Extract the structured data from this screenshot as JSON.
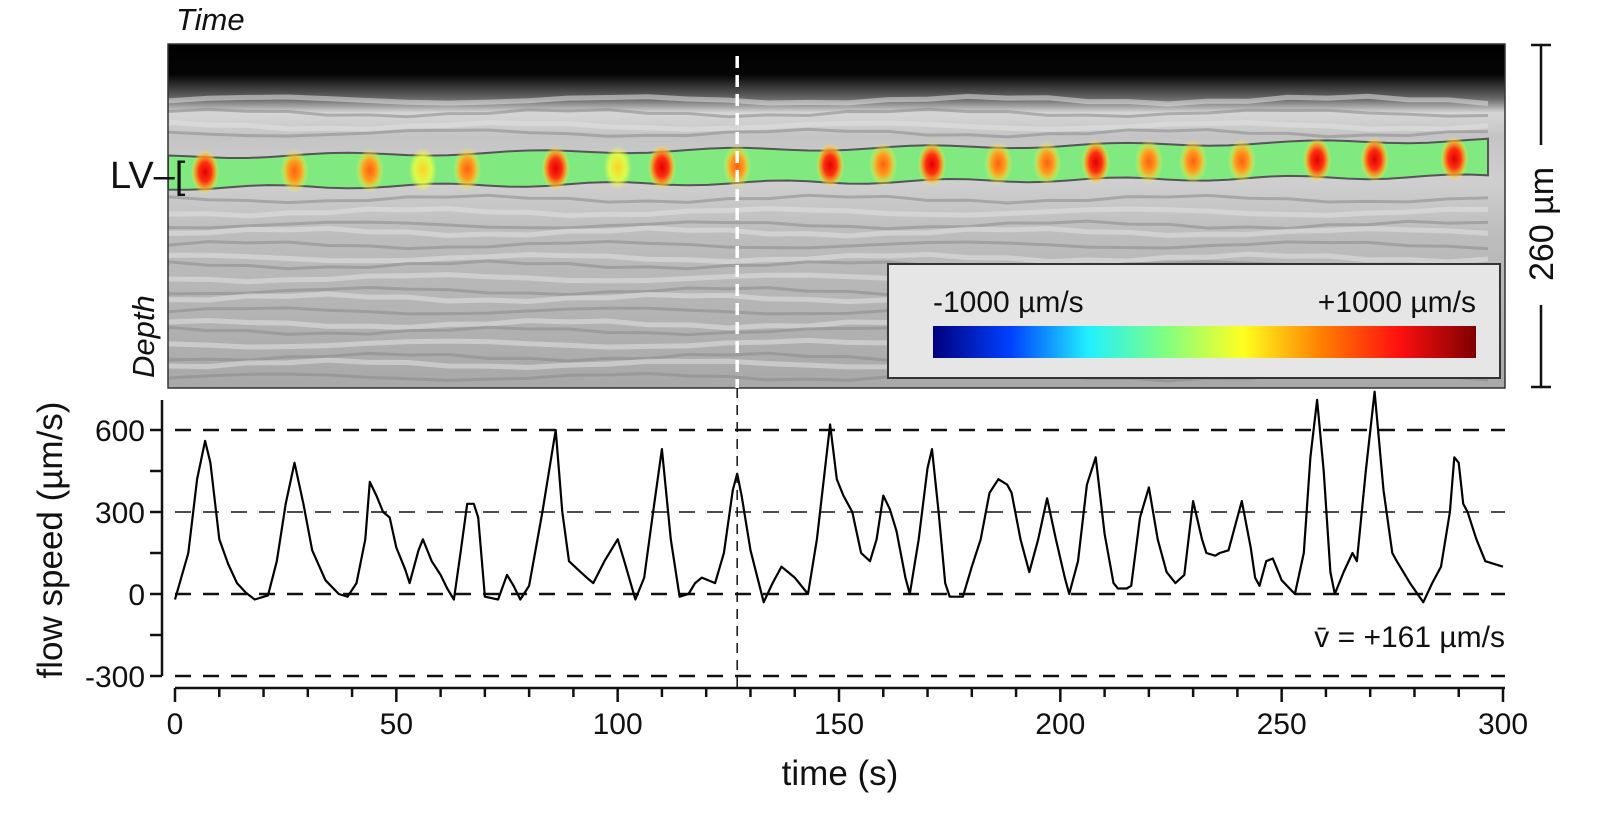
{
  "image_panel": {
    "time_label": "Time",
    "depth_label": "Depth",
    "vessel_label": "LV–[",
    "scale_bar_label": "260 µm",
    "colorbar": {
      "min_label": "-1000 µm/s",
      "max_label": "+1000 µm/s",
      "min_color": "#1a1a8c",
      "max_color": "#8c1a1a",
      "colormap": [
        "#00007f",
        "#0040ff",
        "#20f0ff",
        "#80ff80",
        "#ffff20",
        "#ff8000",
        "#ff1010",
        "#7f0000"
      ]
    },
    "vessel_base_color": "#80ea80"
  },
  "chart_data": {
    "type": "line",
    "xlabel": "time (s)",
    "ylabel": "flow speed (µm/s)",
    "xlim": [
      0,
      300
    ],
    "ylim": [
      -300,
      750
    ],
    "xticks": [
      0,
      50,
      100,
      150,
      200,
      250,
      300
    ],
    "xtick_labels": [
      "0",
      "50",
      "100",
      "150",
      "200",
      "250",
      "300"
    ],
    "yticks": [
      -300,
      0,
      300,
      600
    ],
    "ytick_labels": [
      "-300",
      "0",
      "300",
      "600"
    ],
    "grid": "dashed horizontal at -300, 0, 300, 600",
    "marker_time": 127,
    "annotation": "v̄ = +161 µm/s",
    "series": [
      {
        "color": "#000000",
        "points": [
          [
            0,
            -20
          ],
          [
            3,
            150
          ],
          [
            5,
            420
          ],
          [
            6.8,
            560
          ],
          [
            8,
            480
          ],
          [
            10,
            200
          ],
          [
            12,
            110
          ],
          [
            14,
            40
          ],
          [
            16,
            5
          ],
          [
            18,
            -20
          ],
          [
            21,
            -5
          ],
          [
            23,
            120
          ],
          [
            25,
            330
          ],
          [
            27,
            480
          ],
          [
            29,
            330
          ],
          [
            31,
            160
          ],
          [
            34,
            50
          ],
          [
            37,
            0
          ],
          [
            39,
            -10
          ],
          [
            41,
            40
          ],
          [
            43,
            200
          ],
          [
            44,
            410
          ],
          [
            45.5,
            360
          ],
          [
            47,
            300
          ],
          [
            48.5,
            280
          ],
          [
            50,
            170
          ],
          [
            52,
            90
          ],
          [
            53,
            40
          ],
          [
            55,
            160
          ],
          [
            56,
            200
          ],
          [
            58,
            120
          ],
          [
            60,
            70
          ],
          [
            61.5,
            20
          ],
          [
            63,
            -20
          ],
          [
            64.5,
            150
          ],
          [
            66,
            330
          ],
          [
            67.5,
            330
          ],
          [
            68.5,
            280
          ],
          [
            70,
            -10
          ],
          [
            73,
            -20
          ],
          [
            75,
            70
          ],
          [
            76.5,
            30
          ],
          [
            78,
            -20
          ],
          [
            80,
            30
          ],
          [
            83,
            300
          ],
          [
            86,
            600
          ],
          [
            87.5,
            300
          ],
          [
            89,
            120
          ],
          [
            91,
            90
          ],
          [
            93,
            60
          ],
          [
            94.5,
            40
          ],
          [
            97,
            120
          ],
          [
            100,
            200
          ],
          [
            101.5,
            120
          ],
          [
            104,
            -20
          ],
          [
            106,
            60
          ],
          [
            108,
            300
          ],
          [
            110,
            530
          ],
          [
            112,
            200
          ],
          [
            114,
            -10
          ],
          [
            116,
            0
          ],
          [
            117.5,
            40
          ],
          [
            119,
            60
          ],
          [
            122,
            40
          ],
          [
            124,
            150
          ],
          [
            126,
            380
          ],
          [
            127,
            440
          ],
          [
            128,
            360
          ],
          [
            130,
            160
          ],
          [
            133,
            -30
          ],
          [
            135,
            40
          ],
          [
            137,
            100
          ],
          [
            138.5,
            80
          ],
          [
            140,
            60
          ],
          [
            143,
            0
          ],
          [
            145,
            200
          ],
          [
            147,
            480
          ],
          [
            148,
            620
          ],
          [
            149.5,
            420
          ],
          [
            151,
            360
          ],
          [
            153,
            300
          ],
          [
            155,
            150
          ],
          [
            157,
            120
          ],
          [
            158.5,
            200
          ],
          [
            160,
            360
          ],
          [
            161.5,
            310
          ],
          [
            163,
            230
          ],
          [
            165,
            60
          ],
          [
            166,
            0
          ],
          [
            168,
            200
          ],
          [
            170,
            460
          ],
          [
            171,
            530
          ],
          [
            172.5,
            300
          ],
          [
            174,
            40
          ],
          [
            175,
            -10
          ],
          [
            178,
            -10
          ],
          [
            180,
            100
          ],
          [
            182,
            200
          ],
          [
            184,
            370
          ],
          [
            186,
            420
          ],
          [
            188,
            400
          ],
          [
            189,
            370
          ],
          [
            191,
            200
          ],
          [
            193,
            80
          ],
          [
            195,
            200
          ],
          [
            197,
            350
          ],
          [
            199,
            200
          ],
          [
            201,
            60
          ],
          [
            202,
            0
          ],
          [
            204,
            120
          ],
          [
            206,
            400
          ],
          [
            208,
            500
          ],
          [
            210,
            220
          ],
          [
            212,
            40
          ],
          [
            213,
            20
          ],
          [
            215,
            20
          ],
          [
            216,
            30
          ],
          [
            218,
            280
          ],
          [
            220,
            390
          ],
          [
            222,
            200
          ],
          [
            224,
            80
          ],
          [
            226,
            40
          ],
          [
            228,
            70
          ],
          [
            230,
            340
          ],
          [
            232,
            200
          ],
          [
            233,
            150
          ],
          [
            235,
            140
          ],
          [
            236,
            150
          ],
          [
            238,
            160
          ],
          [
            241,
            340
          ],
          [
            243,
            170
          ],
          [
            244,
            60
          ],
          [
            245,
            30
          ],
          [
            246.5,
            120
          ],
          [
            248,
            130
          ],
          [
            250,
            50
          ],
          [
            253,
            0
          ],
          [
            255,
            150
          ],
          [
            256.5,
            500
          ],
          [
            258,
            710
          ],
          [
            259.5,
            450
          ],
          [
            261,
            80
          ],
          [
            262,
            0
          ],
          [
            264,
            80
          ],
          [
            266,
            150
          ],
          [
            267,
            120
          ],
          [
            269,
            450
          ],
          [
            271,
            740
          ],
          [
            273,
            380
          ],
          [
            275,
            150
          ],
          [
            276,
            120
          ],
          [
            279,
            40
          ],
          [
            282,
            -30
          ],
          [
            284,
            40
          ],
          [
            286,
            100
          ],
          [
            288,
            300
          ],
          [
            289,
            500
          ],
          [
            290,
            480
          ],
          [
            291,
            330
          ],
          [
            292,
            300
          ],
          [
            294,
            200
          ],
          [
            296,
            120
          ],
          [
            298,
            110
          ],
          [
            300,
            100
          ]
        ]
      }
    ]
  }
}
